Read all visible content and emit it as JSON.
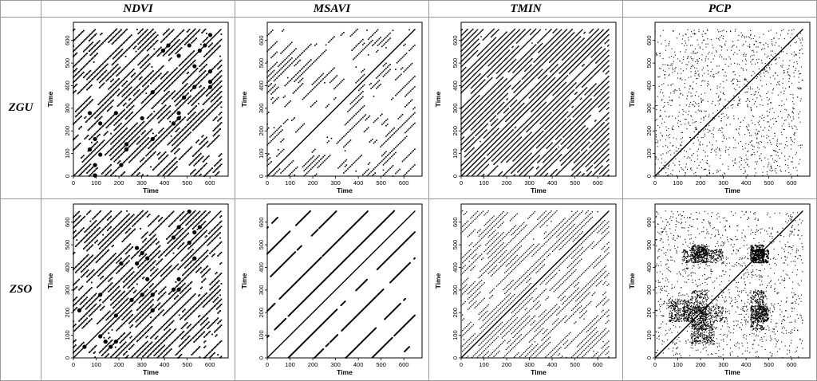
{
  "columns": [
    "NDVI",
    "MSAVI",
    "TMIN",
    "PCP"
  ],
  "rows": [
    "ZGU",
    "ZSO"
  ],
  "chart_data": [
    {
      "type": "scatter",
      "subtype": "recurrence-plot",
      "row": "ZGU",
      "column": "NDVI",
      "xlabel": "Time",
      "ylabel": "Time",
      "xlim": [
        0,
        680
      ],
      "ylim": [
        0,
        680
      ],
      "xticks": [
        0,
        100,
        200,
        300,
        400,
        500,
        600
      ],
      "yticks": [
        0,
        100,
        200,
        300,
        400,
        500,
        600
      ],
      "period": 23,
      "diagonal_offsets": [
        23,
        46,
        69,
        92,
        115,
        138,
        161,
        184,
        207,
        230,
        253,
        276,
        299,
        322,
        345,
        368,
        391,
        414,
        437,
        460,
        483,
        506,
        529,
        552,
        575,
        598,
        621,
        644
      ],
      "pattern": "dense dashed diagonals with heavy blobs"
    },
    {
      "type": "scatter",
      "subtype": "recurrence-plot",
      "row": "ZGU",
      "column": "MSAVI",
      "xlabel": "Time",
      "ylabel": "Time",
      "xlim": [
        0,
        680
      ],
      "ylim": [
        0,
        680
      ],
      "xticks": [
        0,
        100,
        200,
        300,
        400,
        500,
        600
      ],
      "yticks": [
        0,
        100,
        200,
        300,
        400,
        500,
        600
      ],
      "period": 23,
      "diagonal_offsets": [
        23,
        46,
        69,
        92,
        115,
        138,
        161,
        184,
        207,
        230,
        253,
        276,
        299,
        322,
        345,
        368,
        391,
        414,
        437,
        460,
        483,
        506,
        529,
        552,
        575,
        598,
        621,
        644
      ],
      "pattern": "sparse dashed diagonals"
    },
    {
      "type": "scatter",
      "subtype": "recurrence-plot",
      "row": "ZGU",
      "column": "TMIN",
      "xlabel": "Time",
      "ylabel": "Time",
      "xlim": [
        0,
        680
      ],
      "ylim": [
        0,
        680
      ],
      "xticks": [
        0,
        100,
        200,
        300,
        400,
        500,
        600
      ],
      "yticks": [
        0,
        100,
        200,
        300,
        400,
        500,
        600
      ],
      "period": 23,
      "diagonal_offsets": [
        23,
        46,
        69,
        92,
        115,
        138,
        161,
        184,
        207,
        230,
        253,
        276,
        299,
        322,
        345,
        368,
        391,
        414,
        437,
        460,
        483,
        506,
        529,
        552,
        575,
        598,
        621,
        644
      ],
      "pattern": "regular continuous diagonals"
    },
    {
      "type": "scatter",
      "subtype": "recurrence-plot",
      "row": "ZGU",
      "column": "PCP",
      "xlabel": "Time",
      "ylabel": "Time",
      "xlim": [
        0,
        680
      ],
      "ylim": [
        0,
        680
      ],
      "xticks": [
        0,
        100,
        200,
        300,
        400,
        500,
        600
      ],
      "yticks": [
        0,
        100,
        200,
        300,
        400,
        500,
        600
      ],
      "period": 23,
      "diagonal_offsets": [],
      "pattern": "scattered points with main diagonal"
    },
    {
      "type": "scatter",
      "subtype": "recurrence-plot",
      "row": "ZSO",
      "column": "NDVI",
      "xlabel": "Time",
      "ylabel": "Time",
      "xlim": [
        0,
        680
      ],
      "ylim": [
        0,
        680
      ],
      "xticks": [
        0,
        100,
        200,
        300,
        400,
        500,
        600
      ],
      "yticks": [
        0,
        100,
        200,
        300,
        400,
        500,
        600
      ],
      "period": 23,
      "diagonal_offsets": [
        23,
        46,
        69,
        92,
        115,
        138,
        161,
        184,
        207,
        230,
        253,
        276,
        299,
        322,
        345,
        368,
        391,
        414,
        437,
        460,
        483,
        506,
        529,
        552,
        575,
        598,
        621,
        644
      ],
      "pattern": "dense dashed diagonals with heavy blobs"
    },
    {
      "type": "scatter",
      "subtype": "recurrence-plot",
      "row": "ZSO",
      "column": "MSAVI",
      "xlabel": "Time",
      "ylabel": "Time",
      "xlim": [
        0,
        680
      ],
      "ylim": [
        0,
        680
      ],
      "xticks": [
        0,
        100,
        200,
        300,
        400,
        500,
        600
      ],
      "yticks": [
        0,
        100,
        200,
        300,
        400,
        500,
        600
      ],
      "period": 23,
      "diagonal_offsets": [
        92,
        207,
        345,
        460,
        575
      ],
      "pattern": "few long broken diagonals"
    },
    {
      "type": "scatter",
      "subtype": "recurrence-plot",
      "row": "ZSO",
      "column": "TMIN",
      "xlabel": "Time",
      "ylabel": "Time",
      "xlim": [
        0,
        680
      ],
      "ylim": [
        0,
        680
      ],
      "xticks": [
        0,
        100,
        200,
        300,
        400,
        500,
        600
      ],
      "yticks": [
        0,
        100,
        200,
        300,
        400,
        500,
        600
      ],
      "period": 23,
      "diagonal_offsets": [
        23,
        46,
        69,
        92,
        115,
        138,
        161,
        184,
        207,
        230,
        253,
        276,
        299,
        322,
        345,
        368,
        391,
        414,
        437,
        460,
        483,
        506,
        529,
        552,
        575,
        598,
        621,
        644
      ],
      "pattern": "regular dotted diagonals"
    },
    {
      "type": "scatter",
      "subtype": "recurrence-plot",
      "row": "ZSO",
      "column": "PCP",
      "xlabel": "Time",
      "ylabel": "Time",
      "xlim": [
        0,
        680
      ],
      "ylim": [
        0,
        680
      ],
      "xticks": [
        0,
        100,
        200,
        300,
        400,
        500,
        600
      ],
      "yticks": [
        0,
        100,
        200,
        300,
        400,
        500,
        600
      ],
      "period": 23,
      "diagonal_offsets": [],
      "pattern": "scattered points with dense rectangular blocks and main diagonal"
    }
  ]
}
